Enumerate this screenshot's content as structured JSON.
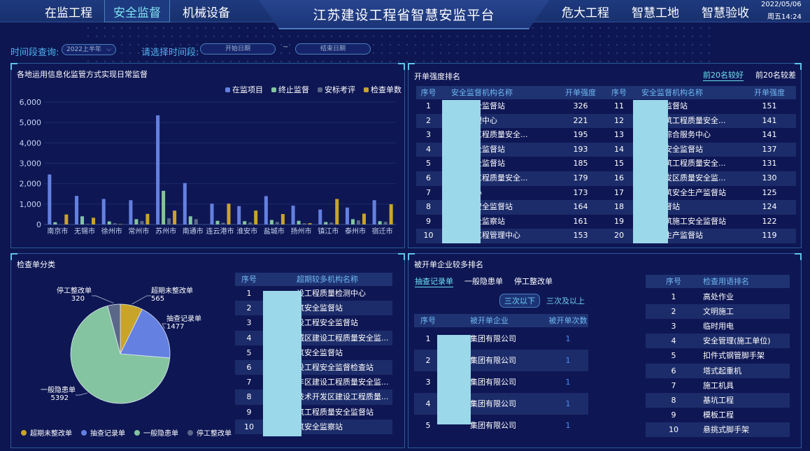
{
  "header": {
    "title": "江苏建设工程省智慧安监平台",
    "nav_left": [
      "在监工程",
      "安全监督",
      "机械设备"
    ],
    "active": "安全监督",
    "nav_right": [
      "危大工程",
      "智慧工地",
      "智慧验收"
    ],
    "date": "2022/05/06",
    "weekday_time": "周五14:24"
  },
  "filters": {
    "period_label": "时间段查询:",
    "period_value": "2022上半年",
    "range_label": "请选择时间段:",
    "start_placeholder": "开始日期",
    "tilde": "~",
    "end_placeholder": "结束日期"
  },
  "colors": {
    "blue": "#6480e0",
    "green": "#84c4a0",
    "gray": "#5a6788",
    "gold": "#c9a42a",
    "accent": "#6fe0f0",
    "redaction": "#9ad8ea"
  },
  "bar_panel": {
    "title": "各地运用信息化监管方式实现日常监督"
  },
  "chart_data": [
    {
      "type": "bar",
      "title": "各地运用信息化监管方式实现日常监督",
      "ylim": [
        0,
        6000
      ],
      "yticks": [
        "0",
        "1,000",
        "2,000",
        "3,000",
        "4,000",
        "5,000",
        "6,000"
      ],
      "grid": true,
      "legend": "top-right",
      "categories": [
        "南京市",
        "无锡市",
        "徐州市",
        "常州市",
        "苏州市",
        "南通市",
        "连云港市",
        "淮安市",
        "盐城市",
        "扬州市",
        "镇江市",
        "泰州市",
        "宿迁市"
      ],
      "series": [
        {
          "name": "在监项目",
          "color": "#6480e0",
          "values": [
            2450,
            1400,
            1250,
            1190,
            5350,
            2030,
            1020,
            900,
            1390,
            920,
            730,
            830,
            1190
          ]
        },
        {
          "name": "终止监督",
          "color": "#84c4a0",
          "values": [
            110,
            400,
            150,
            260,
            1650,
            400,
            180,
            160,
            220,
            180,
            120,
            260,
            160
          ]
        },
        {
          "name": "安标考评",
          "color": "#5a6788",
          "values": [
            10,
            30,
            60,
            170,
            300,
            260,
            80,
            100,
            120,
            60,
            90,
            200,
            130
          ]
        },
        {
          "name": "检查单数",
          "color": "#c9a42a",
          "values": [
            490,
            330,
            20,
            520,
            680,
            0,
            1020,
            680,
            510,
            60,
            1250,
            530,
            990
          ]
        }
      ]
    },
    {
      "type": "pie",
      "title": "检查单分类",
      "legend": "bottom",
      "slices": [
        {
          "name": "超期未整改单",
          "value": 565,
          "color": "#c9a42a"
        },
        {
          "name": "抽查记录单",
          "value": 1477,
          "color": "#6480e0"
        },
        {
          "name": "一般隐患单",
          "value": 5392,
          "color": "#84c4a0"
        },
        {
          "name": "停工整改单",
          "value": 320,
          "color": "#5a6788"
        }
      ]
    }
  ],
  "rank_panel": {
    "title": "开单强度排名",
    "tabs": [
      "前20名较好",
      "前20名较差"
    ],
    "headers": [
      "序号",
      "安全监督机构名称",
      "开单强度",
      "序号",
      "安全监督机构名称",
      "开单强度"
    ],
    "rows": [
      [
        "1",
        "工程安全监督站",
        "326",
        "11",
        "筑安全监督站",
        "151"
      ],
      [
        "2",
        "工程管理中心",
        "221",
        "12",
        "题区建筑工程质量安全...",
        "141"
      ],
      [
        "3",
        "区建设工程质量安全...",
        "195",
        "13",
        "乡建设综合服务中心",
        "141"
      ],
      [
        "4",
        "工程安全监督站",
        "193",
        "14",
        "筑工程安全监督站",
        "137"
      ],
      [
        "5",
        "工程安全监督站",
        "185",
        "15",
        "江区建筑工程质量安全...",
        "131"
      ],
      [
        "6",
        "区建设工程质量安全...",
        "179",
        "16",
        "技术开发区质量安全监...",
        "130"
      ],
      [
        "7",
        "管理中心",
        "173",
        "17",
        "州区建筑安全生产监督站",
        "125"
      ],
      [
        "8",
        "设工程安全监督站",
        "164",
        "18",
        "安全监督站",
        "124"
      ],
      [
        "9",
        "工程安全监察站",
        "161",
        "19",
        "门区建筑施工安全监督站",
        "122"
      ],
      [
        "10",
        "区建设工程管理中心",
        "153",
        "20",
        "级安全生产监督站",
        "119"
      ]
    ]
  },
  "pie_panel": {
    "title": "检查单分类"
  },
  "overdue_table": {
    "headers": [
      "序号",
      "超期较多机构名称"
    ],
    "rows": [
      [
        "1",
        "设工程质量检测中心"
      ],
      [
        "2",
        "筑安全监督站"
      ],
      [
        "3",
        "设工程安全监督站"
      ],
      [
        "4",
        "城区建设工程质量安全监..."
      ],
      [
        "5",
        "筑安全监督站"
      ],
      [
        "6",
        "设工程安全监督检查站"
      ],
      [
        "7",
        "丰区建设工程质量安全监..."
      ],
      [
        "8",
        "技术开发区建设工程质量..."
      ],
      [
        "9",
        "筑工程质量安全监督站"
      ],
      [
        "10",
        "筑安全监察站"
      ]
    ]
  },
  "company_panel": {
    "title": "被开单企业较多排名",
    "tabs": [
      "抽查记录单",
      "一般隐患单",
      "停工整改单"
    ],
    "sub_tabs": [
      "三次以下",
      "三次及以上"
    ],
    "headers": [
      "序号",
      "被开单企业",
      "被开单次数"
    ],
    "rows": [
      [
        "1",
        "集团有限公司",
        "1"
      ],
      [
        "2",
        "集团有限公司",
        "1"
      ],
      [
        "3",
        "集团有限公司",
        "1"
      ],
      [
        "4",
        "集团有限公司",
        "1"
      ],
      [
        "5",
        "集团有限公司",
        "1"
      ]
    ]
  },
  "terms_table": {
    "headers": [
      "序号",
      "检查用语排名"
    ],
    "rows": [
      [
        "1",
        "高处作业"
      ],
      [
        "2",
        "文明施工"
      ],
      [
        "3",
        "临时用电"
      ],
      [
        "4",
        "安全管理(施工单位)"
      ],
      [
        "5",
        "扣件式钢管脚手架"
      ],
      [
        "6",
        "塔式起重机"
      ],
      [
        "7",
        "施工机具"
      ],
      [
        "8",
        "基坑工程"
      ],
      [
        "9",
        "模板工程"
      ],
      [
        "10",
        "悬挑式脚手架"
      ]
    ]
  }
}
